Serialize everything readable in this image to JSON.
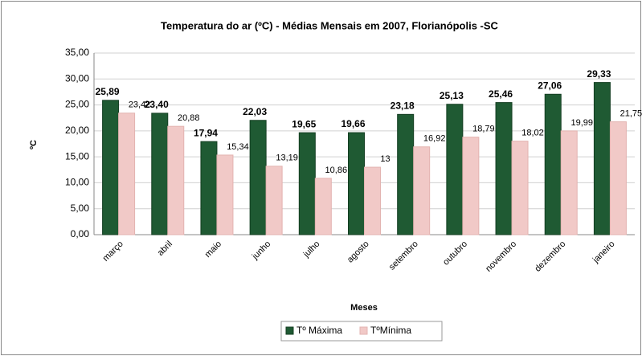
{
  "chart_data": {
    "type": "bar",
    "title": "Temperatura do ar  (ºC) - Médias Mensais em 2007, Florianópolis -SC",
    "x_label": "Meses",
    "y_label": "ºC",
    "categories": [
      "março",
      "abril",
      "maio",
      "junho",
      "julho",
      "agosto",
      "setembro",
      "outubro",
      "novembro",
      "dezembro",
      "janeiro"
    ],
    "series": [
      {
        "name": "Tº Máxima",
        "color": "#1f5a33",
        "values": [
          25.89,
          23.4,
          17.94,
          22.03,
          19.65,
          19.66,
          23.18,
          25.13,
          25.46,
          27.06,
          29.33
        ],
        "value_labels": [
          "25,89",
          "23,40",
          "17,94",
          "22,03",
          "19,65",
          "19,66",
          "23,18",
          "25,13",
          "25,46",
          "27,06",
          "29,33"
        ]
      },
      {
        "name": "TºMínima",
        "color": "#f1c9c7",
        "values": [
          23.42,
          20.88,
          15.34,
          13.19,
          10.86,
          13,
          16.92,
          18.79,
          18.02,
          19.99,
          21.75
        ],
        "value_labels": [
          "23,42",
          "20,88",
          "15,34",
          "13,19",
          "10,86",
          "13",
          "16,92",
          "18,79",
          "18,02",
          "19,99",
          "21,75"
        ]
      }
    ],
    "ylim": [
      0,
      35
    ],
    "yticks": [
      {
        "value": 0,
        "label": "0,00"
      },
      {
        "value": 5,
        "label": "5,00"
      },
      {
        "value": 10,
        "label": "10,00"
      },
      {
        "value": 15,
        "label": "15,00"
      },
      {
        "value": 20,
        "label": "20,00"
      },
      {
        "value": 25,
        "label": "25,00"
      },
      {
        "value": 30,
        "label": "30,00"
      },
      {
        "value": 35,
        "label": "35,00"
      }
    ],
    "grid": true,
    "legend": "bottom"
  }
}
